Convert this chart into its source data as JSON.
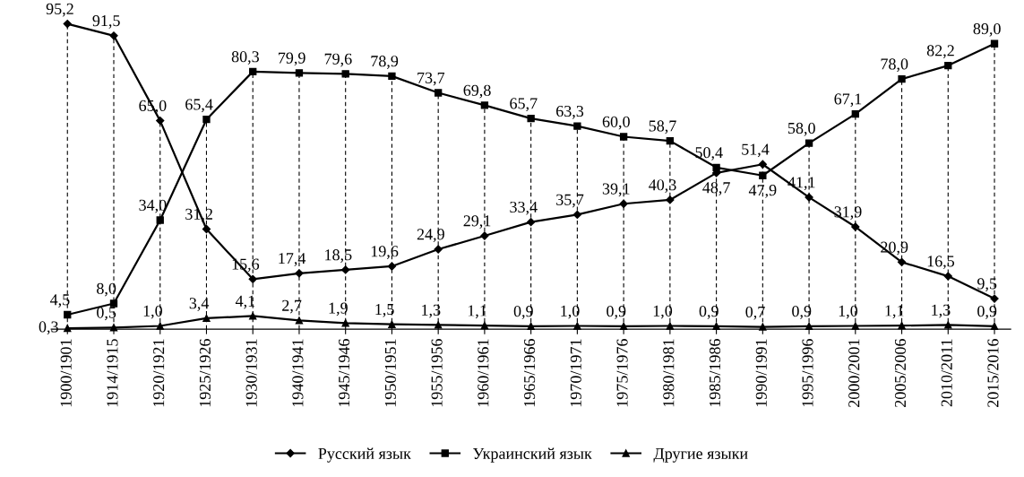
{
  "chart_data": {
    "type": "line",
    "categories": [
      "1900/1901",
      "1914/1915",
      "1920/1921",
      "1925/1926",
      "1930/1931",
      "1940/1941",
      "1945/1946",
      "1950/1951",
      "1955/1956",
      "1960/1961",
      "1965/1966",
      "1970/1971",
      "1975/1976",
      "1980/1981",
      "1985/1986",
      "1990/1991",
      "1995/1996",
      "2000/2001",
      "2005/2006",
      "2010/2011",
      "2015/2016"
    ],
    "series": [
      {
        "name": "Русский язык",
        "color": "#000000",
        "marker": "diamond",
        "values": [
          95.2,
          91.5,
          65.0,
          31.2,
          15.6,
          17.4,
          18.5,
          19.6,
          24.9,
          29.1,
          33.4,
          35.7,
          39.1,
          40.3,
          48.7,
          51.4,
          41.1,
          31.9,
          20.9,
          16.5,
          9.5
        ],
        "value_labels": [
          "95,2",
          "91,5",
          "65,0",
          "31,2",
          "15,6",
          "17,4",
          "18,5",
          "19,6",
          "24,9",
          "29,1",
          "33,4",
          "35,7",
          "39,1",
          "40,3",
          "48,7",
          "51,4",
          "41,1",
          "31,9",
          "20,9",
          "16,5",
          "9,5"
        ]
      },
      {
        "name": "Украинский язык",
        "color": "#000000",
        "marker": "square",
        "values": [
          4.5,
          8.0,
          34.0,
          65.4,
          80.3,
          79.9,
          79.6,
          78.9,
          73.7,
          69.8,
          65.7,
          63.3,
          60.0,
          58.7,
          50.4,
          47.9,
          58.0,
          67.1,
          78.0,
          82.2,
          89.0
        ],
        "value_labels": [
          "4,5",
          "8,0",
          "34,0",
          "65,4",
          "80,3",
          "79,9",
          "79,6",
          "78,9",
          "73,7",
          "69,8",
          "65,7",
          "63,3",
          "60,0",
          "58,7",
          "50,4",
          "47,9",
          "58,0",
          "67,1",
          "78,0",
          "82,2",
          "89,0"
        ]
      },
      {
        "name": "Другие языки",
        "color": "#000000",
        "marker": "triangle",
        "values": [
          0.3,
          0.5,
          1.0,
          3.4,
          4.1,
          2.7,
          1.9,
          1.5,
          1.3,
          1.1,
          0.9,
          1.0,
          0.9,
          1.0,
          0.9,
          0.7,
          0.9,
          1.0,
          1.1,
          1.3,
          0.9
        ],
        "value_labels": [
          "0,3",
          "0,5",
          "1,0",
          "3,4",
          "4,1",
          "2,7",
          "1,9",
          "1,5",
          "1,3",
          "1,1",
          "0,9",
          "1,0",
          "0,9",
          "1,0",
          "0,9",
          "0,7",
          "0,9",
          "1,0",
          "1,1",
          "1,3",
          "0,9"
        ]
      }
    ],
    "grid": "x",
    "line_style": "solid",
    "legend": "bottom"
  }
}
